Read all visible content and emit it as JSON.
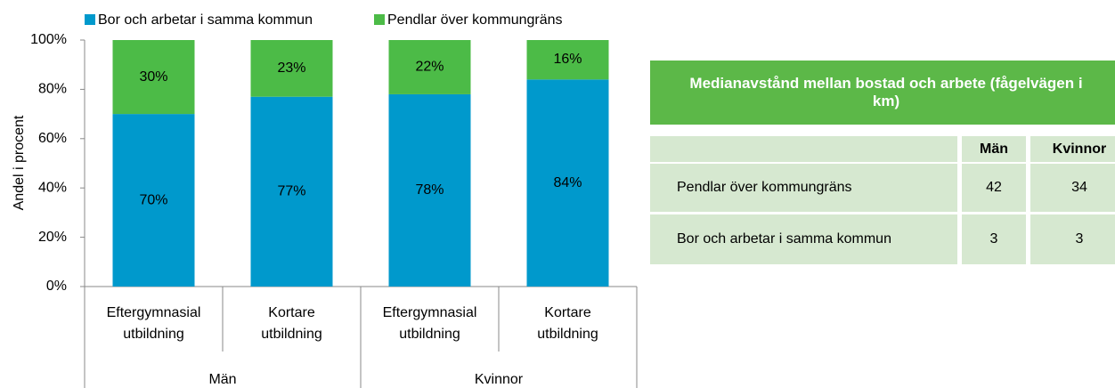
{
  "chart_data": {
    "type": "stacked_bar",
    "ylabel": "Andel i procent",
    "categories": [
      "Eftergymnasial utbildning",
      "Kortare utbildning",
      "Eftergymnasial utbildning",
      "Kortare utbildning"
    ],
    "groups": [
      "Män",
      "Kvinnor"
    ],
    "series": [
      {
        "name": "Bor och arbetar i samma kommun",
        "color": "#0099cc",
        "values": [
          70,
          77,
          78,
          84
        ],
        "value_labels": [
          "70%",
          "77%",
          "78%",
          "84%"
        ]
      },
      {
        "name": "Pendlar över kommungräns",
        "color": "#4cbb47",
        "values": [
          30,
          23,
          22,
          16
        ],
        "value_labels": [
          "30%",
          "23%",
          "22%",
          "16%"
        ]
      }
    ],
    "ylim": [
      0,
      100
    ],
    "yticks": [
      {
        "value": 0,
        "label": "0%"
      },
      {
        "value": 20,
        "label": "20%"
      },
      {
        "value": 40,
        "label": "40%"
      },
      {
        "value": 60,
        "label": "60%"
      },
      {
        "value": 80,
        "label": "80%"
      },
      {
        "value": 100,
        "label": "100%"
      }
    ],
    "legend": "top"
  },
  "table": {
    "title": "Medianavstånd mellan bostad och arbete (fågelvägen i km)",
    "columns": [
      "Män",
      "Kvinnor"
    ],
    "rows": [
      {
        "label": "Pendlar över kommungräns",
        "values": [
          "42",
          "34"
        ]
      },
      {
        "label": "Bor och arbetar i samma kommun",
        "values": [
          "3",
          "3"
        ]
      }
    ]
  }
}
